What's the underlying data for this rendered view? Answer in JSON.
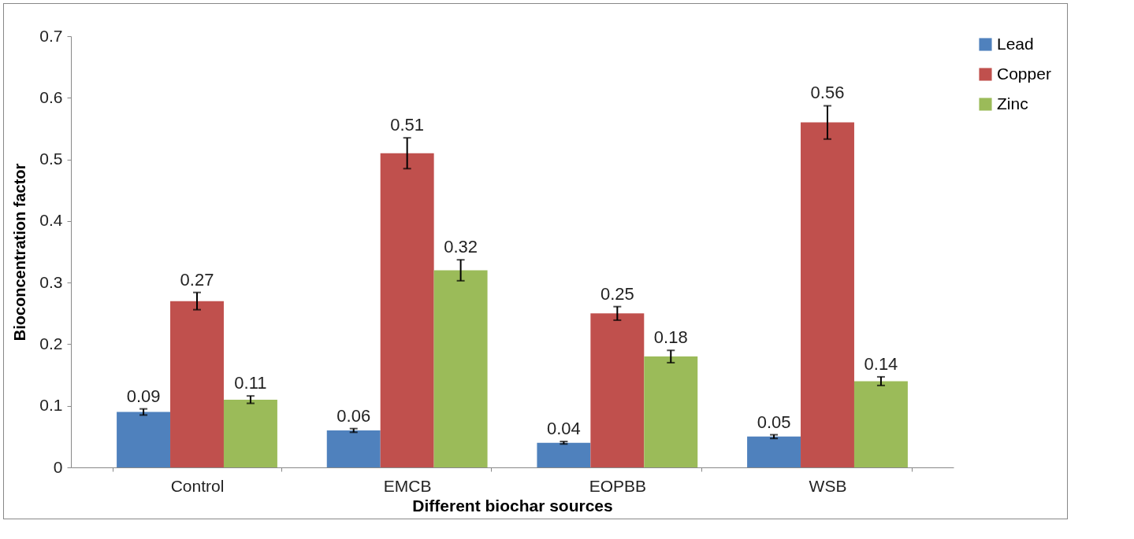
{
  "chart_data": {
    "type": "bar",
    "xlabel": "Different biochar sources",
    "ylabel": "Bioconcentration factor",
    "categories": [
      "Control",
      "EMCB",
      "EOPBB",
      "WSB"
    ],
    "series": [
      {
        "name": "Lead",
        "color": "#4f81bd",
        "values": [
          0.09,
          0.06,
          0.04,
          0.05
        ],
        "errors": [
          0.005,
          0.003,
          0.002,
          0.003
        ]
      },
      {
        "name": "Copper",
        "color": "#c0504d",
        "values": [
          0.27,
          0.51,
          0.25,
          0.56
        ],
        "errors": [
          0.014,
          0.025,
          0.011,
          0.027
        ]
      },
      {
        "name": "Zinc",
        "color": "#9bbb59",
        "values": [
          0.11,
          0.32,
          0.18,
          0.14
        ],
        "errors": [
          0.006,
          0.017,
          0.01,
          0.007
        ]
      }
    ],
    "ylim": [
      0,
      0.7
    ],
    "yticks": [
      0,
      0.1,
      0.2,
      0.3,
      0.4,
      0.5,
      0.6,
      0.7
    ],
    "grid": false,
    "legend": "right",
    "data_labels": true
  }
}
